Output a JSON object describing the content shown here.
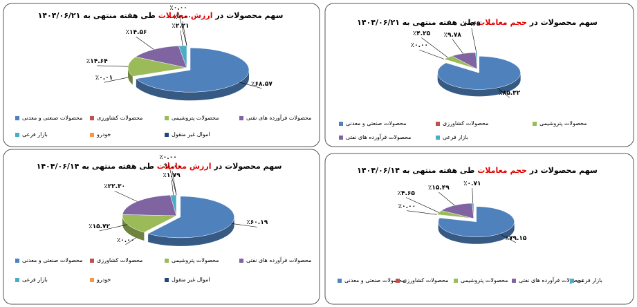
{
  "chart_data": [
    {
      "type": "pie",
      "title_start": "سهم محصولات در ",
      "title_highlight": "ارزش معاملات",
      "title_end": " طی هفته منتهی به ۱۴۰۴/۰۶/۲۱",
      "categories": [
        "محصولات صنعتی و معدنی",
        "محصولات کشاورزی",
        "محصولات پتروشیمی",
        "محصولات فرآورده های نفتی",
        "بازار فرعی",
        "خودرو",
        "اموال غیر منقول"
      ],
      "values": [
        68.57,
        0.01,
        14.64,
        14.56,
        2.21,
        0,
        0
      ],
      "value_labels": [
        "٪۶۸.۵۷",
        "٪۰.۰۱",
        "٪۱۴.۶۴",
        "٪۱۴.۵۶",
        "٪۲.۲۱",
        "٪۰.۰۰",
        "٪۰.۰۰"
      ],
      "colors": [
        "#4f81bd",
        "#c0504d",
        "#9bbb59",
        "#8064a2",
        "#4bacc6",
        "#f79646",
        "#1f497d"
      ]
    },
    {
      "type": "pie",
      "title_start": "سهم محصولات در ",
      "title_highlight": "حجم معاملات",
      "title_end": "  طی هفته منتهی به ۱۴۰۴/۰۶/۲۱",
      "categories": [
        "محصولات صنعتی و معدنی",
        "محصولات کشاورزی",
        "محصولات پتروشیمی",
        "محصولات فرآورده های نفتی",
        "بازار فرعی"
      ],
      "values": [
        85.32,
        0,
        4.25,
        9.78,
        0.65
      ],
      "value_labels": [
        "٪۸۵.۳۲",
        "٪۰.۰۰",
        "٪۴.۲۵",
        "٪۹.۷۸",
        "٪۰.۶۵"
      ],
      "colors": [
        "#4f81bd",
        "#c0504d",
        "#9bbb59",
        "#8064a2",
        "#4bacc6"
      ]
    },
    {
      "type": "pie",
      "title_start": "سهم محصولات در ",
      "title_highlight": "ارزش معاملات",
      "title_end": " طی هفته منتهی به ۱۴۰۴/۰۶/۱۴",
      "categories": [
        "محصولات صنعتی و معدنی",
        "محصولات کشاورزی",
        "محصولات پتروشیمی",
        "محصولات فرآورده های نفتی",
        "بازار فرعی",
        "خودرو",
        "اموال غیر منقول"
      ],
      "values": [
        60.19,
        0,
        15.72,
        22.3,
        1.79,
        0,
        0
      ],
      "value_labels": [
        "٪۶۰.۱۹",
        "٪۰.۰۰",
        "٪۱۵.۷۲",
        "٪۲۲.۳۰",
        "٪۱.۷۹",
        "٪۰.۰۰",
        "٪۰.۰۰"
      ],
      "colors": [
        "#4f81bd",
        "#c0504d",
        "#9bbb59",
        "#8064a2",
        "#4bacc6",
        "#f79646",
        "#1f497d"
      ]
    },
    {
      "type": "pie",
      "title_start": "سهم محصولات در ",
      "title_highlight": "حجم معاملات",
      "title_end": "  طی هفته منتهی به ۱۴۰۴/۰۶/۱۴",
      "categories": [
        "محصولات صنعتی و معدنی",
        "محصولات کشاورزی",
        "محصولات پتروشیمی",
        "محصولات فرآورده های نفتی",
        "بازار فرعی"
      ],
      "values": [
        79.15,
        0,
        4.65,
        15.49,
        0.71
      ],
      "value_labels": [
        "٪۷۹.۱۵",
        "٪۰.۰۰",
        "٪۴.۶۵",
        "٪۱۵.۴۹",
        "٪۰.۷۱"
      ],
      "colors": [
        "#4f81bd",
        "#c0504d",
        "#9bbb59",
        "#8064a2",
        "#4bacc6"
      ]
    }
  ]
}
